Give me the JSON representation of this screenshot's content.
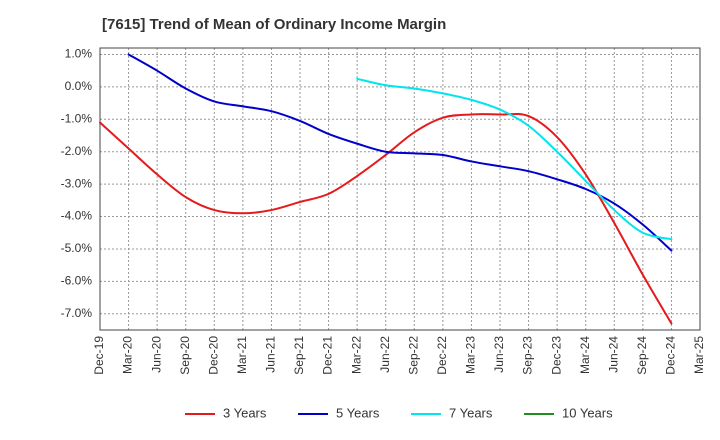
{
  "chart_data": {
    "type": "line",
    "title": "[7615]  Trend of Mean of Ordinary Income Margin",
    "xlabel": "",
    "ylabel": "",
    "x": [
      "Dec-19",
      "Mar-20",
      "Jun-20",
      "Sep-20",
      "Dec-20",
      "Mar-21",
      "Jun-21",
      "Sep-21",
      "Dec-21",
      "Mar-22",
      "Jun-22",
      "Sep-22",
      "Dec-22",
      "Mar-23",
      "Jun-23",
      "Sep-23",
      "Dec-23",
      "Mar-24",
      "Jun-24",
      "Sep-24",
      "Dec-24",
      "Mar-25"
    ],
    "y_ticks": [
      "1.0%",
      "0.0%",
      "-1.0%",
      "-2.0%",
      "-3.0%",
      "-4.0%",
      "-5.0%",
      "-6.0%",
      "-7.0%"
    ],
    "y_tick_values": [
      1,
      0,
      -1,
      -2,
      -3,
      -4,
      -5,
      -6,
      -7
    ],
    "ylim": [
      -7.5,
      1.2
    ],
    "grid": true,
    "legend_position": "bottom",
    "series": [
      {
        "name": "3 Years",
        "color": "#e41a1c",
        "values": [
          -1.1,
          -1.9,
          -2.7,
          -3.4,
          -3.8,
          -3.9,
          -3.8,
          -3.55,
          -3.3,
          -2.75,
          -2.1,
          -1.4,
          -0.95,
          -0.85,
          -0.85,
          -0.9,
          -1.55,
          -2.7,
          -4.2,
          -5.8,
          -7.3,
          null
        ]
      },
      {
        "name": "5 Years",
        "color": "#0000cc",
        "values": [
          null,
          1.0,
          0.5,
          -0.05,
          -0.45,
          -0.6,
          -0.75,
          -1.05,
          -1.45,
          -1.75,
          -2.0,
          -2.05,
          -2.1,
          -2.3,
          -2.45,
          -2.6,
          -2.85,
          -3.15,
          -3.6,
          -4.25,
          -5.05,
          null
        ]
      },
      {
        "name": "7 Years",
        "color": "#00e5ee",
        "values": [
          null,
          null,
          null,
          null,
          null,
          null,
          null,
          null,
          null,
          0.25,
          0.05,
          -0.05,
          -0.2,
          -0.4,
          -0.7,
          -1.2,
          -2.0,
          -2.9,
          -3.8,
          -4.5,
          -4.7,
          null
        ]
      },
      {
        "name": "10 Years",
        "color": "#228b22",
        "values": [
          null,
          null,
          null,
          null,
          null,
          null,
          null,
          null,
          null,
          null,
          null,
          null,
          null,
          null,
          null,
          null,
          null,
          null,
          null,
          null,
          null,
          null
        ]
      }
    ]
  }
}
